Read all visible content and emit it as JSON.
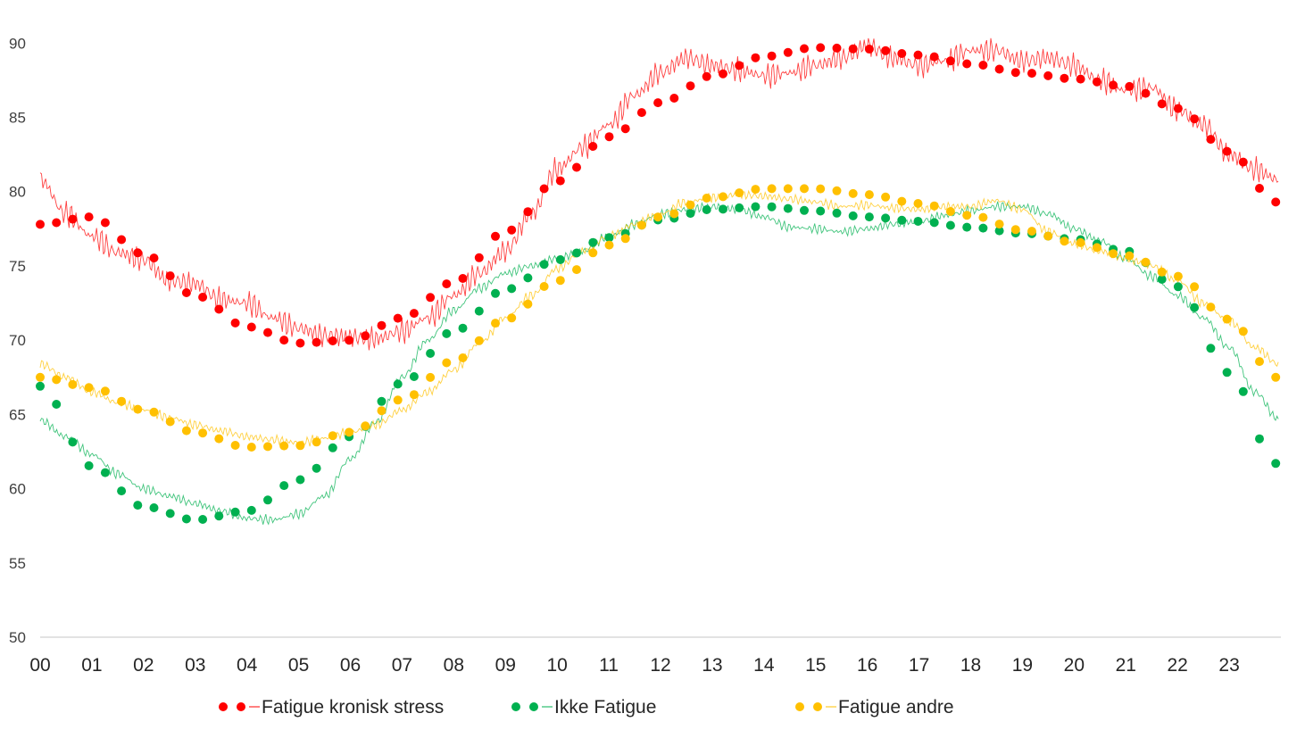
{
  "chart_data": {
    "type": "line",
    "x_tick_labels": [
      "00",
      "01",
      "02",
      "03",
      "04",
      "05",
      "06",
      "07",
      "08",
      "09",
      "10",
      "11",
      "12",
      "13",
      "14",
      "15",
      "16",
      "17",
      "18",
      "19",
      "20",
      "21",
      "22",
      "23"
    ],
    "y_ticks": [
      90,
      85,
      80,
      75,
      70,
      65,
      60,
      55,
      50
    ],
    "ylim": [
      50,
      90.5
    ],
    "xlim": [
      0,
      24
    ],
    "grid": false,
    "legend_position": "bottom",
    "series": [
      {
        "name": "Fatigue kronisk stress",
        "color": "#ff0000",
        "trend_style": "dotted",
        "trend": [
          [
            0,
            77.8
          ],
          [
            1,
            78.3
          ],
          [
            2,
            75.8
          ],
          [
            3,
            73.0
          ],
          [
            4,
            70.9
          ],
          [
            5,
            69.8
          ],
          [
            6,
            70.0
          ],
          [
            7,
            71.5
          ],
          [
            8,
            73.9
          ],
          [
            9,
            77.3
          ],
          [
            10,
            80.7
          ],
          [
            11,
            83.7
          ],
          [
            12,
            86.0
          ],
          [
            13,
            87.8
          ],
          [
            14,
            89.1
          ],
          [
            15,
            89.7
          ],
          [
            16,
            89.6
          ],
          [
            17,
            89.2
          ],
          [
            18,
            88.6
          ],
          [
            19,
            88.0
          ],
          [
            20,
            87.6
          ],
          [
            21,
            87.1
          ],
          [
            22,
            85.6
          ],
          [
            23,
            82.7
          ],
          [
            23.9,
            79.3
          ]
        ],
        "raw": [
          [
            0,
            80.8
          ],
          [
            0.5,
            78.5
          ],
          [
            1,
            77.0
          ],
          [
            1.5,
            75.9
          ],
          [
            2,
            75.4
          ],
          [
            2.5,
            74.0
          ],
          [
            3,
            73.8
          ],
          [
            3.5,
            72.7
          ],
          [
            4,
            72.5
          ],
          [
            4.5,
            71.5
          ],
          [
            5,
            70.8
          ],
          [
            5.5,
            70.3
          ],
          [
            6,
            70.2
          ],
          [
            6.5,
            70.1
          ],
          [
            7,
            70.6
          ],
          [
            7.5,
            71.5
          ],
          [
            8,
            73.0
          ],
          [
            8.5,
            74.5
          ],
          [
            9,
            76.0
          ],
          [
            9.5,
            78.5
          ],
          [
            10,
            81.5
          ],
          [
            10.5,
            83.0
          ],
          [
            11,
            84.5
          ],
          [
            11.5,
            86.5
          ],
          [
            12,
            88.0
          ],
          [
            12.5,
            89.0
          ],
          [
            13,
            88.5
          ],
          [
            13.5,
            88.2
          ],
          [
            14,
            87.8
          ],
          [
            14.5,
            88.0
          ],
          [
            15,
            88.5
          ],
          [
            15.5,
            89.0
          ],
          [
            16,
            89.8
          ],
          [
            16.5,
            89.0
          ],
          [
            17,
            88.5
          ],
          [
            17.5,
            88.8
          ],
          [
            18,
            89.5
          ],
          [
            18.5,
            89.5
          ],
          [
            19,
            88.8
          ],
          [
            19.5,
            89.0
          ],
          [
            20,
            88.5
          ],
          [
            20.5,
            87.5
          ],
          [
            21,
            86.8
          ],
          [
            21.5,
            87.0
          ],
          [
            22,
            85.5
          ],
          [
            22.5,
            84.5
          ],
          [
            23,
            82.5
          ],
          [
            23.5,
            81.5
          ],
          [
            23.95,
            80.8
          ]
        ]
      },
      {
        "name": "Ikke Fatigue",
        "color": "#00b050",
        "trend_style": "dotted",
        "trend": [
          [
            0,
            66.9
          ],
          [
            1,
            61.5
          ],
          [
            2,
            58.8
          ],
          [
            3,
            57.9
          ],
          [
            4,
            58.5
          ],
          [
            5,
            60.6
          ],
          [
            6,
            63.5
          ],
          [
            7,
            67.1
          ],
          [
            8,
            70.6
          ],
          [
            9,
            73.4
          ],
          [
            10,
            75.4
          ],
          [
            11,
            76.9
          ],
          [
            12,
            78.1
          ],
          [
            13,
            78.8
          ],
          [
            14,
            79.0
          ],
          [
            15,
            78.7
          ],
          [
            16,
            78.3
          ],
          [
            17,
            78.0
          ],
          [
            18,
            77.6
          ],
          [
            19,
            77.2
          ],
          [
            20,
            76.8
          ],
          [
            21,
            76.0
          ],
          [
            22,
            73.6
          ],
          [
            23,
            67.8
          ],
          [
            23.9,
            61.7
          ]
        ],
        "raw": [
          [
            0,
            64.6
          ],
          [
            0.5,
            63.5
          ],
          [
            1,
            62.3
          ],
          [
            1.5,
            61.0
          ],
          [
            2,
            60.0
          ],
          [
            2.5,
            59.5
          ],
          [
            3,
            59.0
          ],
          [
            3.5,
            58.5
          ],
          [
            4,
            58.0
          ],
          [
            4.5,
            57.9
          ],
          [
            5,
            58.3
          ],
          [
            5.5,
            59.5
          ],
          [
            6,
            62.0
          ],
          [
            6.5,
            64.5
          ],
          [
            7,
            67.5
          ],
          [
            7.5,
            70.0
          ],
          [
            8,
            72.0
          ],
          [
            8.5,
            73.5
          ],
          [
            9,
            74.5
          ],
          [
            9.5,
            75.0
          ],
          [
            10,
            75.5
          ],
          [
            10.5,
            76.0
          ],
          [
            11,
            77.0
          ],
          [
            11.5,
            77.8
          ],
          [
            12,
            78.5
          ],
          [
            12.5,
            78.8
          ],
          [
            13,
            79.0
          ],
          [
            13.5,
            78.8
          ],
          [
            14,
            78.3
          ],
          [
            14.5,
            77.6
          ],
          [
            15,
            77.5
          ],
          [
            15.5,
            77.3
          ],
          [
            16,
            77.5
          ],
          [
            16.5,
            77.8
          ],
          [
            17,
            78.0
          ],
          [
            17.5,
            78.4
          ],
          [
            18,
            78.7
          ],
          [
            18.5,
            79.0
          ],
          [
            19,
            79.0
          ],
          [
            19.5,
            78.5
          ],
          [
            20,
            77.5
          ],
          [
            20.5,
            76.7
          ],
          [
            21,
            75.5
          ],
          [
            21.5,
            74.3
          ],
          [
            22,
            73.0
          ],
          [
            22.5,
            71.5
          ],
          [
            23,
            69.5
          ],
          [
            23.5,
            66.5
          ],
          [
            23.95,
            64.7
          ]
        ]
      },
      {
        "name": "Fatigue andre",
        "color": "#ffc000",
        "trend_style": "dotted",
        "trend": [
          [
            0,
            67.5
          ],
          [
            1,
            66.8
          ],
          [
            2,
            65.3
          ],
          [
            3,
            63.8
          ],
          [
            4,
            62.8
          ],
          [
            5,
            62.9
          ],
          [
            6,
            63.8
          ],
          [
            7,
            66.0
          ],
          [
            8,
            68.6
          ],
          [
            9,
            71.4
          ],
          [
            10,
            74.0
          ],
          [
            11,
            76.4
          ],
          [
            12,
            78.3
          ],
          [
            13,
            79.6
          ],
          [
            14,
            80.2
          ],
          [
            15,
            80.2
          ],
          [
            16,
            79.8
          ],
          [
            17,
            79.2
          ],
          [
            18,
            78.4
          ],
          [
            19,
            77.4
          ],
          [
            20,
            76.6
          ],
          [
            21,
            75.7
          ],
          [
            22,
            74.3
          ],
          [
            23,
            71.4
          ],
          [
            23.9,
            67.5
          ]
        ],
        "raw": [
          [
            0,
            68.4
          ],
          [
            0.5,
            67.5
          ],
          [
            1,
            66.5
          ],
          [
            1.5,
            65.8
          ],
          [
            2,
            65.3
          ],
          [
            2.5,
            64.8
          ],
          [
            3,
            64.3
          ],
          [
            3.5,
            63.9
          ],
          [
            4,
            63.5
          ],
          [
            4.5,
            63.3
          ],
          [
            5,
            63.1
          ],
          [
            5.5,
            63.4
          ],
          [
            6,
            63.8
          ],
          [
            6.5,
            64.3
          ],
          [
            7,
            65.3
          ],
          [
            7.5,
            66.5
          ],
          [
            8,
            68.0
          ],
          [
            8.5,
            69.8
          ],
          [
            9,
            71.5
          ],
          [
            9.5,
            73.0
          ],
          [
            10,
            74.8
          ],
          [
            10.5,
            76.0
          ],
          [
            11,
            77.0
          ],
          [
            11.5,
            77.8
          ],
          [
            12,
            78.5
          ],
          [
            12.5,
            79.3
          ],
          [
            13,
            79.6
          ],
          [
            13.5,
            79.8
          ],
          [
            14,
            79.7
          ],
          [
            14.5,
            79.5
          ],
          [
            15,
            79.3
          ],
          [
            15.5,
            79.0
          ],
          [
            16,
            79.1
          ],
          [
            16.5,
            78.9
          ],
          [
            17,
            78.8
          ],
          [
            17.5,
            79.0
          ],
          [
            18,
            79.0
          ],
          [
            18.5,
            79.4
          ],
          [
            19,
            78.8
          ],
          [
            19.5,
            77.3
          ],
          [
            20,
            76.5
          ],
          [
            20.5,
            76.0
          ],
          [
            21,
            75.5
          ],
          [
            21.5,
            75.0
          ],
          [
            22,
            74.0
          ],
          [
            22.5,
            72.5
          ],
          [
            23,
            71.3
          ],
          [
            23.5,
            69.5
          ],
          [
            23.95,
            68.4
          ]
        ]
      }
    ]
  }
}
